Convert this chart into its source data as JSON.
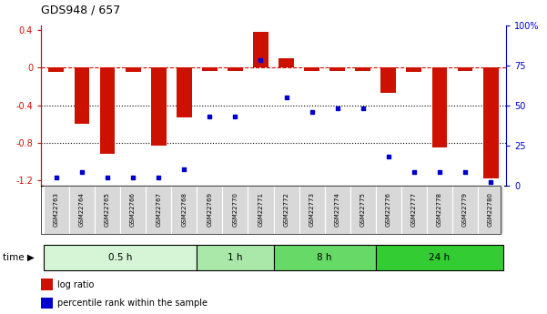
{
  "title": "GDS948 / 657",
  "samples": [
    "GSM22763",
    "GSM22764",
    "GSM22765",
    "GSM22766",
    "GSM22767",
    "GSM22768",
    "GSM22769",
    "GSM22770",
    "GSM22771",
    "GSM22772",
    "GSM22773",
    "GSM22774",
    "GSM22775",
    "GSM22776",
    "GSM22777",
    "GSM22778",
    "GSM22779",
    "GSM22780"
  ],
  "log_ratio": [
    -0.05,
    -0.6,
    -0.92,
    -0.05,
    -0.83,
    -0.53,
    -0.04,
    -0.04,
    0.38,
    0.1,
    -0.04,
    -0.04,
    -0.04,
    -0.27,
    -0.05,
    -0.85,
    -0.04,
    -1.18
  ],
  "percentile": [
    5,
    8,
    5,
    5,
    5,
    10,
    43,
    43,
    78,
    55,
    46,
    48,
    48,
    18,
    8,
    8,
    8,
    2
  ],
  "groups": [
    {
      "label": "0.5 h",
      "start": 0,
      "end": 6,
      "color": "#d6f5d6"
    },
    {
      "label": "1 h",
      "start": 6,
      "end": 9,
      "color": "#aae8aa"
    },
    {
      "label": "8 h",
      "start": 9,
      "end": 13,
      "color": "#66d966"
    },
    {
      "label": "24 h",
      "start": 13,
      "end": 18,
      "color": "#33cc33"
    }
  ],
  "bar_color": "#cc1100",
  "dot_color": "#0000cc",
  "ylim_left": [
    -1.25,
    0.45
  ],
  "ylim_right": [
    0,
    100
  ],
  "yticks_left": [
    -1.2,
    -0.8,
    -0.4,
    0,
    0.4
  ],
  "yticks_right": [
    0,
    25,
    50,
    75,
    100
  ],
  "ytick_right_labels": [
    "0",
    "25",
    "50",
    "75",
    "100%"
  ],
  "hline_y": 0,
  "dotline1": -0.4,
  "dotline2": -0.8,
  "background_color": "#ffffff"
}
